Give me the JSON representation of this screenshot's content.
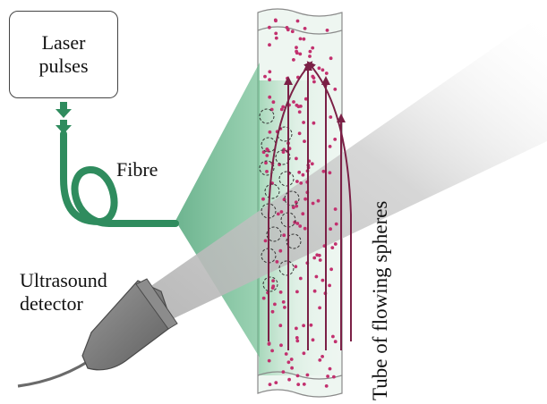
{
  "labels": {
    "laser_line1": "Laser",
    "laser_line2": "pulses",
    "fibre": "Fibre",
    "detector_line1": "Ultrasound",
    "detector_line2": "detector",
    "tube": "Tube of flowing spheres"
  },
  "colors": {
    "fibre_green": "#2f8c5e",
    "light_green": "#9fd4b4",
    "tube_tint": "#e9f5ee",
    "sphere_pink": "#c2306e",
    "flow_arrow": "#7b2046",
    "detector_gray": "#7a7a7a",
    "beam_gray": "#bdbdbd"
  },
  "icons": {
    "laser_arrow": "down-arrow-icon",
    "flow_arrow": "up-arrow-icon"
  }
}
